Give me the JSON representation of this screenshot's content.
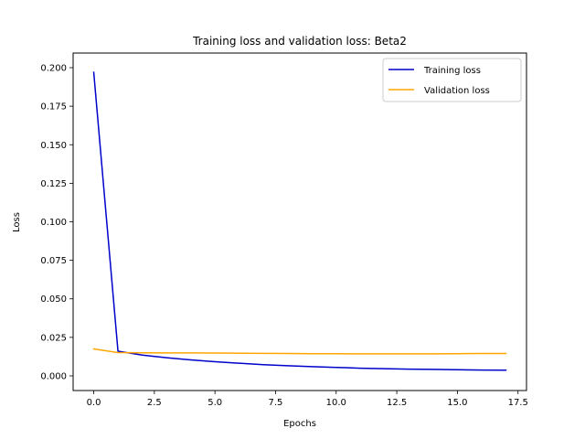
{
  "chart_data": {
    "type": "line",
    "title": "Training loss and validation loss: Beta2",
    "xlabel": "Epochs",
    "ylabel": "Loss",
    "xlim": [
      -0.85,
      17.85
    ],
    "ylim": [
      -0.0095,
      0.2095
    ],
    "xticks": [
      0.0,
      2.5,
      5.0,
      7.5,
      10.0,
      12.5,
      15.0,
      17.5
    ],
    "xtick_labels": [
      "0.0",
      "2.5",
      "5.0",
      "7.5",
      "10.0",
      "12.5",
      "15.0",
      "17.5"
    ],
    "yticks": [
      0.0,
      0.025,
      0.05,
      0.075,
      0.1,
      0.125,
      0.15,
      0.175,
      0.2
    ],
    "ytick_labels": [
      "0.000",
      "0.025",
      "0.050",
      "0.075",
      "0.100",
      "0.125",
      "0.150",
      "0.175",
      "0.200"
    ],
    "grid": false,
    "legend_position": "top-right",
    "x": [
      0,
      1,
      2,
      3,
      4,
      5,
      6,
      7,
      8,
      9,
      10,
      11,
      12,
      13,
      14,
      15,
      16,
      17
    ],
    "series": [
      {
        "name": "Training loss",
        "color": "#0000cc",
        "values": [
          0.197,
          0.016,
          0.0135,
          0.0118,
          0.0104,
          0.0092,
          0.0082,
          0.0073,
          0.0066,
          0.006,
          0.0055,
          0.005,
          0.0047,
          0.0044,
          0.0042,
          0.004,
          0.0038,
          0.0037
        ]
      },
      {
        "name": "Validation loss",
        "color": "#ffa500",
        "values": [
          0.0175,
          0.0151,
          0.015,
          0.0149,
          0.0149,
          0.0148,
          0.0147,
          0.0146,
          0.0145,
          0.0144,
          0.0144,
          0.0143,
          0.0143,
          0.0143,
          0.0143,
          0.0144,
          0.0145,
          0.0145
        ]
      }
    ]
  }
}
